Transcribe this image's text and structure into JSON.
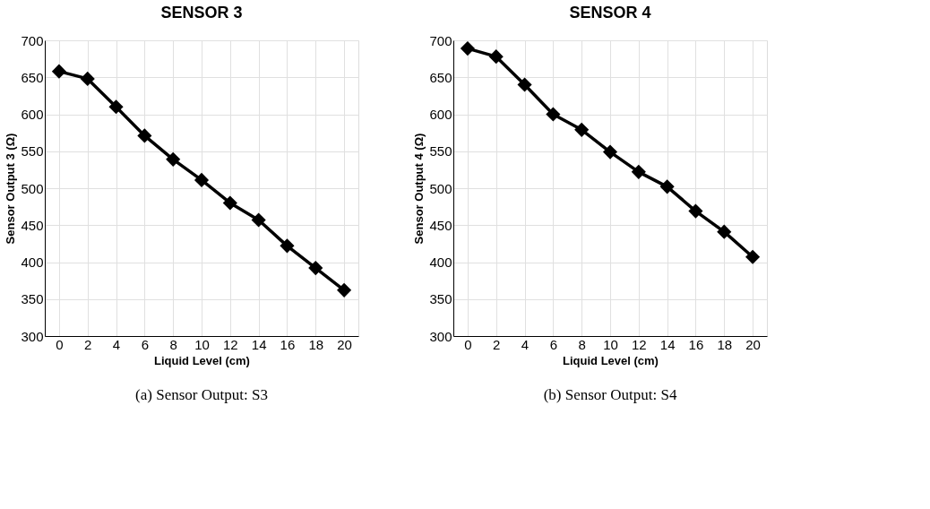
{
  "chart_data": [
    {
      "type": "line",
      "title": "SENSOR 3",
      "xlabel": "Liquid Level (cm)",
      "ylabel": "Sensor Output 3 (Ω)",
      "categories": [
        "0",
        "2",
        "4",
        "6",
        "8",
        "10",
        "12",
        "14",
        "16",
        "18",
        "20"
      ],
      "series": [
        {
          "color": "#000000",
          "values": [
            658,
            648,
            610,
            571,
            539,
            511,
            480,
            457,
            422,
            392,
            362
          ]
        }
      ],
      "ylim": [
        300,
        700
      ],
      "yticks": [
        300,
        350,
        400,
        450,
        500,
        550,
        600,
        650,
        700
      ],
      "grid": true,
      "marker": "diamond",
      "line_style": "solid",
      "annotations": [
        "(a) Sensor Output: S3"
      ]
    },
    {
      "type": "line",
      "title": "SENSOR 4",
      "xlabel": "Liquid Level (cm)",
      "ylabel": "Sensor Output 4 (Ω)",
      "categories": [
        "0",
        "2",
        "4",
        "6",
        "8",
        "10",
        "12",
        "14",
        "16",
        "18",
        "20"
      ],
      "series": [
        {
          "color": "#000000",
          "values": [
            689,
            678,
            640,
            600,
            579,
            549,
            522,
            502,
            469,
            441,
            407
          ]
        }
      ],
      "ylim": [
        300,
        700
      ],
      "yticks": [
        300,
        350,
        400,
        450,
        500,
        550,
        600,
        650,
        700
      ],
      "grid": true,
      "marker": "diamond",
      "line_style": "solid",
      "annotations": [
        "(b) Sensor Output: S4"
      ]
    }
  ]
}
